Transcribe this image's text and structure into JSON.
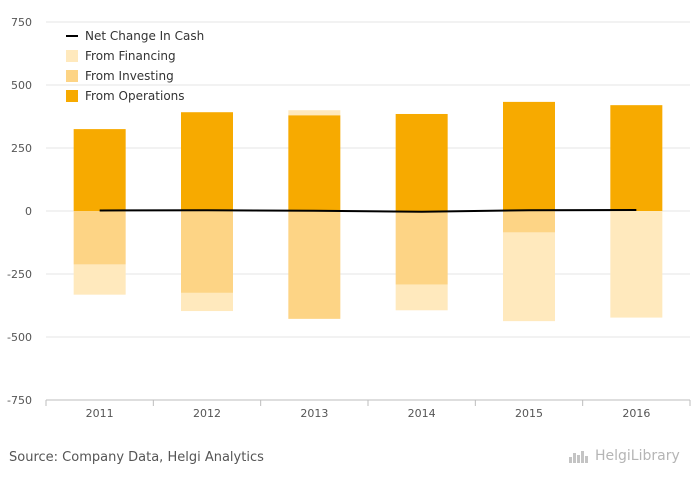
{
  "chart_data": {
    "type": "bar",
    "categories": [
      "2011",
      "2012",
      "2013",
      "2014",
      "2015",
      "2016"
    ],
    "ylim": [
      -750,
      750
    ],
    "yticks": [
      750,
      500,
      250,
      0,
      -250,
      -500,
      -750
    ],
    "grid": true,
    "legend_placement": "top-left",
    "series": [
      {
        "name": "From Operations",
        "kind": "bar",
        "color": "#f7aa00",
        "values": [
          325,
          392,
          380,
          385,
          433,
          420
        ]
      },
      {
        "name": "From Investing",
        "kind": "bar",
        "color": "#fdd485",
        "values": [
          -212,
          -325,
          -428,
          -292,
          -85,
          0
        ]
      },
      {
        "name": "From Financing",
        "kind": "bar",
        "color": "#ffe9bd",
        "values": [
          -120,
          -72,
          20,
          -102,
          -352,
          -423
        ]
      },
      {
        "name": "Net Change In Cash",
        "kind": "line",
        "color": "#000000",
        "values": [
          2,
          3,
          1,
          -3,
          3,
          4
        ]
      }
    ]
  },
  "footer": {
    "source": "Source: Company Data, Helgi Analytics",
    "logo_text": "HelgiLibrary"
  }
}
